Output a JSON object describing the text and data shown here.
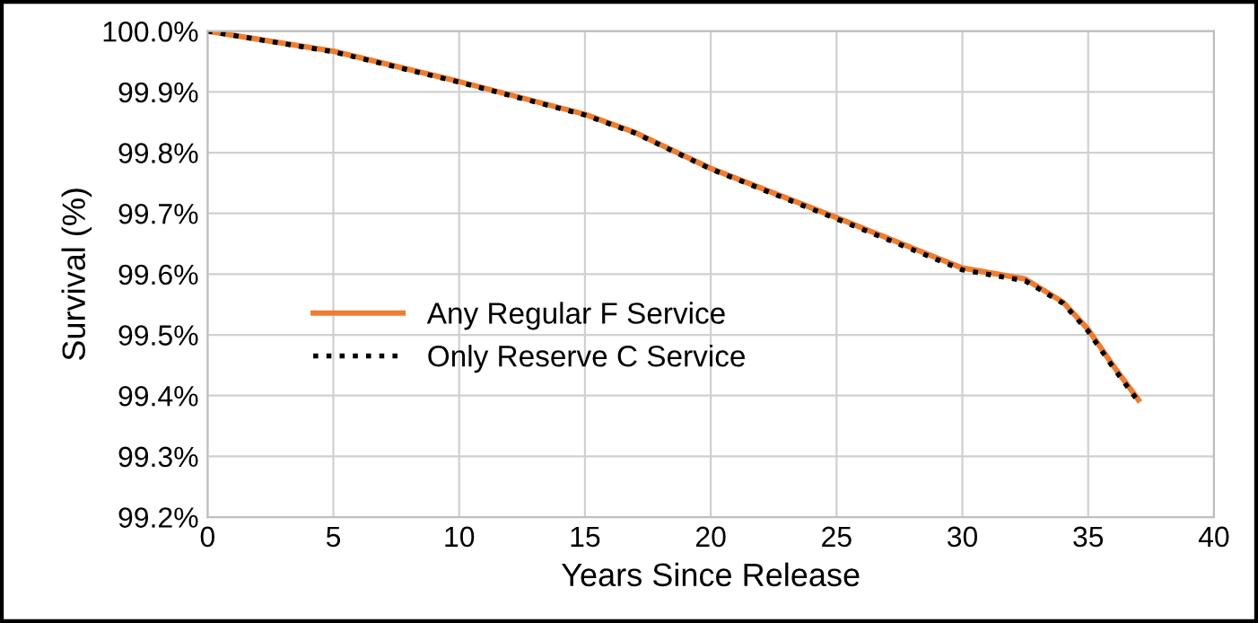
{
  "chart_data": {
    "type": "line",
    "xlabel": "Years Since Release",
    "ylabel": "Survival (%)",
    "xlim": [
      0,
      40
    ],
    "xticks": [
      0,
      5,
      10,
      15,
      20,
      25,
      30,
      35,
      40
    ],
    "ylim": [
      99.2,
      100.0
    ],
    "yticks": [
      {
        "value": 99.2,
        "label": "99.2%"
      },
      {
        "value": 99.3,
        "label": "99.3%"
      },
      {
        "value": 99.4,
        "label": "99.4%"
      },
      {
        "value": 99.5,
        "label": "99.5%"
      },
      {
        "value": 99.6,
        "label": "99.6%"
      },
      {
        "value": 99.7,
        "label": "99.7%"
      },
      {
        "value": 99.8,
        "label": "99.8%"
      },
      {
        "value": 99.9,
        "label": "99.9%"
      },
      {
        "value": 100.0,
        "label": "100.0%"
      }
    ],
    "grid": true,
    "legend": "center",
    "marker": "none",
    "series": [
      {
        "name": "Any Regular F Service",
        "color": "#ed7d31",
        "line_style": "solid",
        "x": [
          0,
          5,
          10,
          15,
          17,
          20,
          25,
          30,
          32.5,
          34,
          35,
          36,
          37
        ],
        "values": [
          100.0,
          99.967,
          99.917,
          99.863,
          99.833,
          99.774,
          99.693,
          99.61,
          99.592,
          99.554,
          99.509,
          99.449,
          99.393
        ]
      },
      {
        "name": "Only Reserve C Service",
        "color": "#000000",
        "line_style": "dotted",
        "x": [
          0,
          5,
          10,
          15,
          17,
          20,
          25,
          30,
          32.5,
          34,
          35,
          36,
          37
        ],
        "values": [
          100.0,
          99.966,
          99.916,
          99.862,
          99.832,
          99.773,
          99.691,
          99.607,
          99.589,
          99.552,
          99.506,
          99.446,
          99.39
        ]
      }
    ]
  }
}
